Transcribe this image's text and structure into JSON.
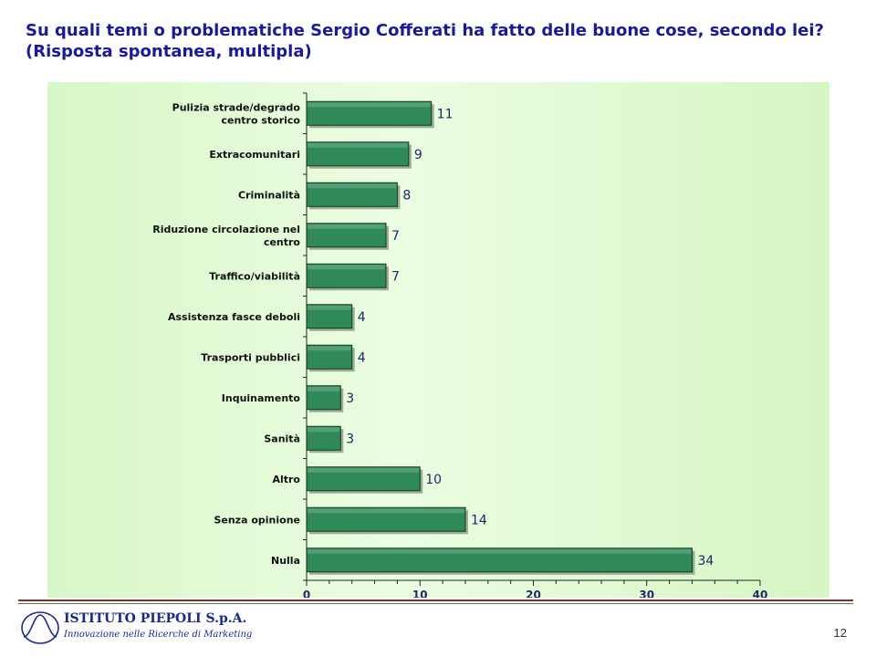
{
  "slide": {
    "title_line1": "Su quali temi o problematiche Sergio Cofferati ha fatto delle buone cose, secondo lei?",
    "title_line2": "(Risposta spontanea, multipla)",
    "page_number": "12"
  },
  "footer": {
    "logo_name": "ISTITUTO PIEPOLI S.p.A.",
    "logo_tagline": "Innovazione nelle Ricerche di Marketing"
  },
  "colors": {
    "title": "#1a1a99",
    "bar_fill": "#2f8a58",
    "bar_stroke": "#123a22",
    "panel_bg": "#dff8cf"
  },
  "chart_data": {
    "type": "bar",
    "orientation": "horizontal",
    "categories": [
      [
        "Pulizia strade/degrado",
        "centro storico"
      ],
      [
        "Extracomunitari"
      ],
      [
        "Criminalità"
      ],
      [
        "Riduzione circolazione nel",
        "centro"
      ],
      [
        "Traffico/viabilità"
      ],
      [
        "Assistenza fasce deboli"
      ],
      [
        "Trasporti pubblici"
      ],
      [
        "Inquinamento"
      ],
      [
        "Sanità"
      ],
      [
        "Altro"
      ],
      [
        "Senza opinione"
      ],
      [
        "Nulla"
      ]
    ],
    "values": [
      11,
      9,
      8,
      7,
      7,
      4,
      4,
      3,
      3,
      10,
      14,
      34
    ],
    "xlim": [
      0,
      40
    ],
    "xticks": [
      0,
      10,
      20,
      30,
      40
    ],
    "grid": false,
    "data_labels": true
  }
}
